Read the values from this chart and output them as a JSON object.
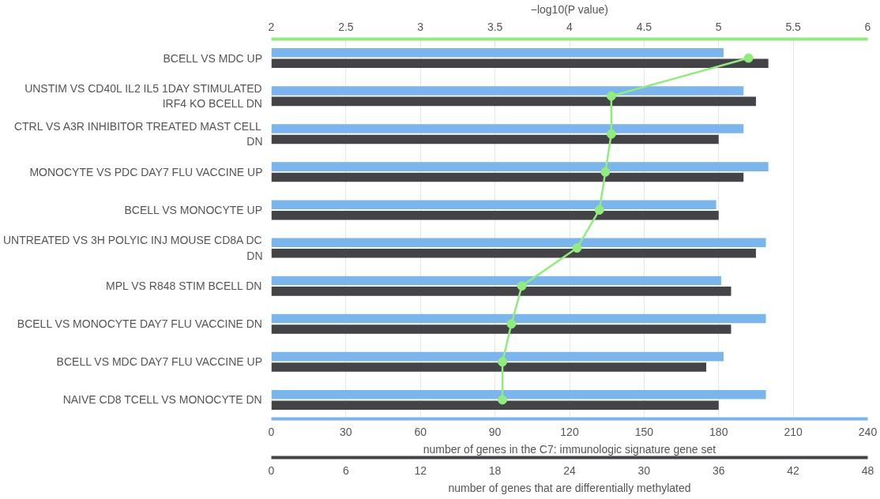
{
  "chart_data": [
    {
      "type": "bar",
      "orientation": "horizontal",
      "categories": [
        "BCELL VS MDC UP",
        "UNSTIM VS CD40L IL2 IL5 1DAY STIMULATED IRF4 KO BCELL DN",
        "CTRL VS A3R INHIBITOR TREATED MAST CELL DN",
        "MONOCYTE VS PDC DAY7 FLU VACCINE UP",
        "BCELL VS MONOCYTE UP",
        "UNTREATED VS 3H POLYIC INJ MOUSE CD8A DC DN",
        "MPL VS R848 STIM BCELL DN",
        "BCELL VS MONOCYTE DAY7 FLU VACCINE DN",
        "BCELL VS MDC DAY7 FLU VACCINE UP",
        "NAIVE CD8 TCELL VS MONOCYTE DN"
      ],
      "series": [
        {
          "color": "#7cb5ec",
          "values": [
            182,
            190,
            190,
            200,
            179,
            199,
            181,
            199,
            182,
            199
          ]
        },
        {
          "type": "line",
          "axis": "x2",
          "color": "#90ed7d",
          "marker": "circle",
          "values": [
            5.2,
            4.28,
            4.28,
            4.24,
            4.2,
            4.05,
            3.68,
            3.61,
            3.55,
            3.55
          ]
        }
      ],
      "xlim": [
        0,
        240
      ],
      "xticks": [
        0,
        30,
        60,
        90,
        120,
        150,
        180,
        210,
        240
      ],
      "xlabel": "number of genes in the C7: immunologic signature gene set",
      "x2lim": [
        2,
        6
      ],
      "x2ticks": [
        2,
        2.5,
        3,
        3.5,
        4,
        4.5,
        5,
        5.5,
        6
      ],
      "x2label": "−log10(P value)",
      "grid": "x"
    },
    {
      "type": "bar",
      "orientation": "horizontal",
      "categories": [
        "BCELL VS MDC UP",
        "UNSTIM VS CD40L IL2 IL5 1DAY STIMULATED IRF4 KO BCELL DN",
        "CTRL VS A3R INHIBITOR TREATED MAST CELL DN",
        "MONOCYTE VS PDC DAY7 FLU VACCINE UP",
        "BCELL VS MONOCYTE UP",
        "UNTREATED VS 3H POLYIC INJ MOUSE CD8A DC DN",
        "MPL VS R848 STIM BCELL DN",
        "BCELL VS MONOCYTE DAY7 FLU VACCINE DN",
        "BCELL VS MDC DAY7 FLU VACCINE UP",
        "NAIVE CD8 TCELL VS MONOCYTE DN"
      ],
      "series": [
        {
          "color": "#434348",
          "values": [
            40,
            39,
            36,
            38,
            36,
            39,
            37,
            37,
            35,
            36
          ]
        }
      ],
      "xlim": [
        0,
        48
      ],
      "xticks": [
        0,
        6,
        12,
        18,
        24,
        30,
        36,
        42,
        48
      ],
      "xlabel": "number of genes that are differentially methylated",
      "tick_labels": "x"
    }
  ]
}
